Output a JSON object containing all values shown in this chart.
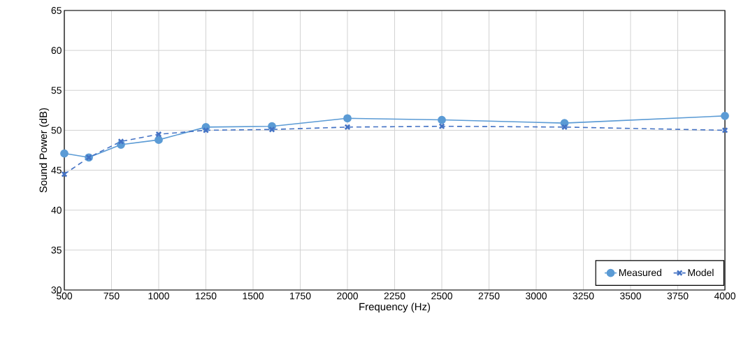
{
  "chart_data": {
    "type": "line",
    "xlabel": "Frequency (Hz)",
    "ylabel": "Sound Power (dB)",
    "x": [
      500,
      630,
      800,
      1000,
      1250,
      1600,
      2000,
      2500,
      3150,
      4000
    ],
    "series": [
      {
        "name": "Measured",
        "color": "#5b9bd5",
        "marker": "circle",
        "line_style": "solid",
        "values": [
          47.1,
          46.6,
          48.2,
          48.8,
          50.4,
          50.5,
          51.5,
          51.3,
          50.9,
          51.8
        ]
      },
      {
        "name": "Model",
        "color": "#4472c4",
        "marker": "cross",
        "line_style": "dashed",
        "values": [
          44.5,
          46.6,
          48.6,
          49.5,
          50.0,
          50.1,
          50.4,
          50.5,
          50.4,
          50.0
        ]
      }
    ],
    "xlim": [
      500,
      4000
    ],
    "ylim": [
      30,
      65
    ],
    "xticks": [
      500,
      750,
      1000,
      1250,
      1500,
      1750,
      2000,
      2250,
      2500,
      2750,
      3000,
      3250,
      3500,
      3750,
      4000
    ],
    "yticks": [
      30,
      35,
      40,
      45,
      50,
      55,
      60,
      65
    ],
    "grid": true,
    "legend": "bottom right"
  }
}
